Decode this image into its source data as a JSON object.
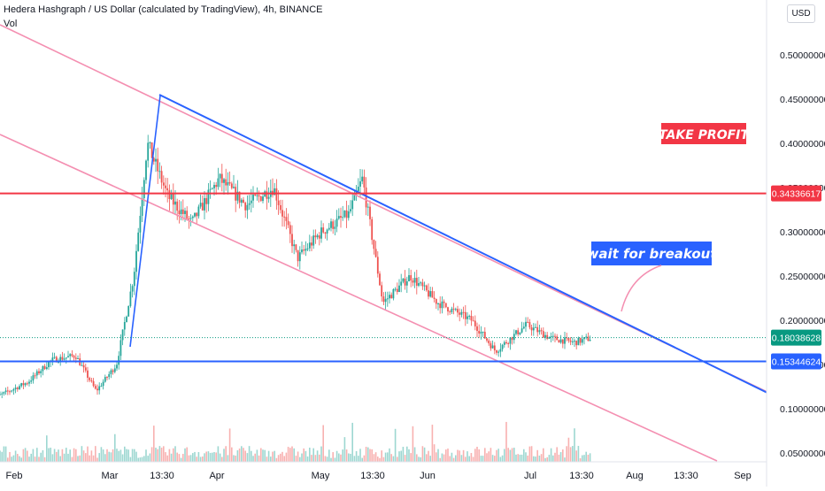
{
  "header": {
    "title": "Hedera Hashgraph / US Dollar (calculated by TradingView), 4h, BINANCE",
    "volume_label": "Vol",
    "currency": "USD"
  },
  "annotations": {
    "take_profit": "TAKE PROFIT",
    "wait_breakout": "wait for breakout"
  },
  "price_badges": {
    "take_profit_level": "0.34336617",
    "current_price": "0.18038628",
    "support_level": "0.15344624"
  },
  "colors": {
    "up": "#26a69a",
    "down": "#ef5350",
    "trendline_blue": "#2962ff",
    "channel_pink": "#f48fb1",
    "level_red": "#f23645",
    "level_blue": "#2962ff",
    "current_price": "#089981"
  },
  "chart_data": {
    "type": "candlestick",
    "y_ticks": [
      "0.50000000",
      "0.45000000",
      "0.40000000",
      "0.35000000",
      "0.30000000",
      "0.25000000",
      "0.20000000",
      "0.15000000",
      "0.10000000",
      "0.05000000"
    ],
    "x_ticks": [
      "Feb",
      "Mar",
      "13:30",
      "Apr",
      "May",
      "13:30",
      "Jun",
      "Jul",
      "13:30",
      "Aug",
      "13:30",
      "Sep"
    ],
    "ylim": [
      0.035,
      0.5
    ],
    "horizontal_levels": [
      {
        "value": 0.34336617,
        "color": "red"
      },
      {
        "value": 0.15344624,
        "color": "blue"
      }
    ],
    "current_price": 0.18038628,
    "price_path": [
      {
        "t": "Jan 25",
        "close": 0.11
      },
      {
        "t": "Feb 05",
        "close": 0.13
      },
      {
        "t": "Feb 12",
        "close": 0.155
      },
      {
        "t": "Feb 19",
        "close": 0.16
      },
      {
        "t": "Feb 25",
        "close": 0.12
      },
      {
        "t": "Mar 03",
        "close": 0.15
      },
      {
        "t": "Mar 08",
        "close": 0.25
      },
      {
        "t": "Mar 12",
        "close": 0.4
      },
      {
        "t": "Mar 18",
        "close": 0.34
      },
      {
        "t": "Mar 25",
        "close": 0.31
      },
      {
        "t": "Apr 02",
        "close": 0.36
      },
      {
        "t": "Apr 10",
        "close": 0.33
      },
      {
        "t": "Apr 18",
        "close": 0.35
      },
      {
        "t": "Apr 25",
        "close": 0.27
      },
      {
        "t": "May 02",
        "close": 0.3
      },
      {
        "t": "May 10",
        "close": 0.32
      },
      {
        "t": "May 14",
        "close": 0.36
      },
      {
        "t": "May 20",
        "close": 0.22
      },
      {
        "t": "May 28",
        "close": 0.25
      },
      {
        "t": "Jun 05",
        "close": 0.22
      },
      {
        "t": "Jun 15",
        "close": 0.2
      },
      {
        "t": "Jun 22",
        "close": 0.165
      },
      {
        "t": "Jul 01",
        "close": 0.195
      },
      {
        "t": "Jul 08",
        "close": 0.18
      },
      {
        "t": "Jul 15",
        "close": 0.175
      },
      {
        "t": "Jul 20",
        "close": 0.18
      }
    ]
  }
}
